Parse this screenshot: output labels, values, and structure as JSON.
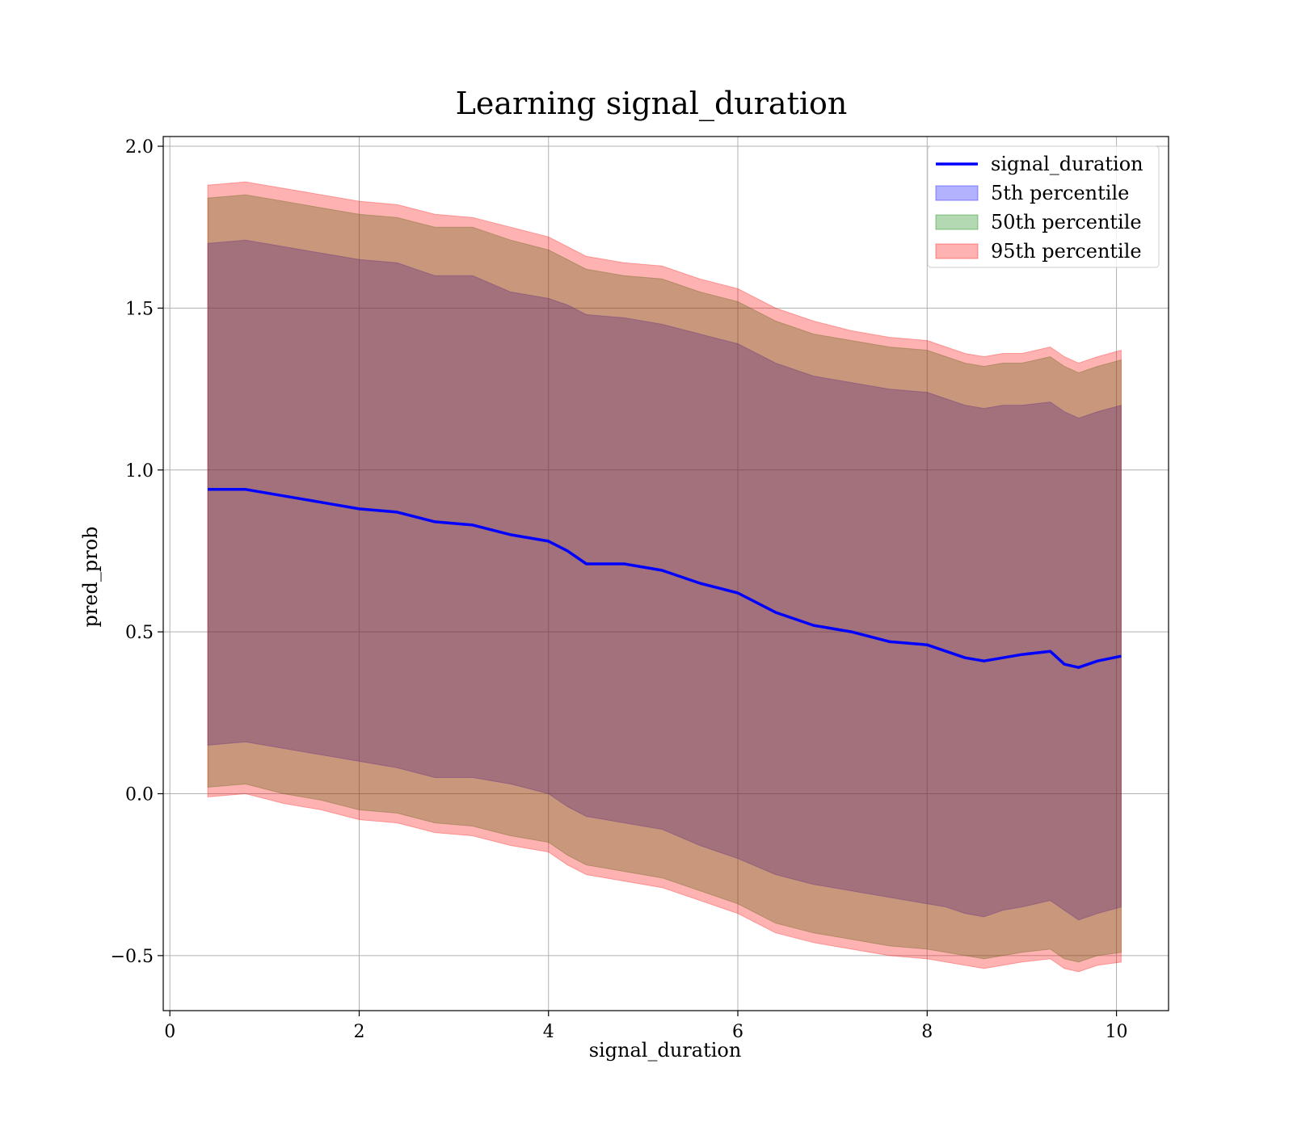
{
  "chart_data": {
    "type": "line",
    "title": "Learning signal_duration",
    "xlabel": "signal_duration",
    "ylabel": "pred_prob",
    "xlim": [
      -0.07,
      10.55
    ],
    "ylim": [
      -0.67,
      2.03
    ],
    "xticks": [
      0,
      2,
      4,
      6,
      8,
      10
    ],
    "xtick_labels": [
      "0",
      "2",
      "4",
      "6",
      "8",
      "10"
    ],
    "yticks": [
      -0.5,
      0.0,
      0.5,
      1.0,
      1.5,
      2.0
    ],
    "ytick_labels": [
      "−0.5",
      "0.0",
      "0.5",
      "1.0",
      "1.5",
      "2.0"
    ],
    "grid": true,
    "legend_position": "top-right",
    "x": [
      0.4,
      0.8,
      1.2,
      1.6,
      2.0,
      2.4,
      2.8,
      3.2,
      3.6,
      4.0,
      4.2,
      4.4,
      4.8,
      5.2,
      5.6,
      6.0,
      6.4,
      6.8,
      7.2,
      7.6,
      8.0,
      8.2,
      8.4,
      8.6,
      8.8,
      9.0,
      9.3,
      9.45,
      9.6,
      9.8,
      10.05
    ],
    "line": {
      "name": "signal_duration",
      "color": "#0000ff",
      "values": [
        0.94,
        0.94,
        0.92,
        0.9,
        0.88,
        0.87,
        0.84,
        0.83,
        0.8,
        0.78,
        0.75,
        0.71,
        0.71,
        0.69,
        0.65,
        0.62,
        0.56,
        0.52,
        0.5,
        0.47,
        0.46,
        0.44,
        0.42,
        0.41,
        0.42,
        0.43,
        0.44,
        0.4,
        0.39,
        0.41,
        0.425
      ]
    },
    "bands": [
      {
        "name": "5th percentile",
        "color": "#0000ff",
        "opacity": 0.3,
        "lower": [
          0.15,
          0.16,
          0.14,
          0.12,
          0.1,
          0.08,
          0.05,
          0.05,
          0.03,
          0.0,
          -0.04,
          -0.07,
          -0.09,
          -0.11,
          -0.16,
          -0.2,
          -0.25,
          -0.28,
          -0.3,
          -0.32,
          -0.34,
          -0.35,
          -0.37,
          -0.38,
          -0.36,
          -0.35,
          -0.33,
          -0.36,
          -0.39,
          -0.37,
          -0.35
        ],
        "upper": [
          1.7,
          1.71,
          1.69,
          1.67,
          1.65,
          1.64,
          1.6,
          1.6,
          1.55,
          1.53,
          1.51,
          1.48,
          1.47,
          1.45,
          1.42,
          1.39,
          1.33,
          1.29,
          1.27,
          1.25,
          1.24,
          1.22,
          1.2,
          1.19,
          1.2,
          1.2,
          1.21,
          1.18,
          1.16,
          1.18,
          1.2
        ]
      },
      {
        "name": "50th percentile",
        "color": "#008000",
        "opacity": 0.3,
        "lower": [
          0.02,
          0.03,
          0.0,
          -0.02,
          -0.05,
          -0.06,
          -0.09,
          -0.1,
          -0.13,
          -0.15,
          -0.19,
          -0.22,
          -0.24,
          -0.26,
          -0.3,
          -0.34,
          -0.4,
          -0.43,
          -0.45,
          -0.47,
          -0.48,
          -0.49,
          -0.5,
          -0.51,
          -0.5,
          -0.49,
          -0.48,
          -0.51,
          -0.52,
          -0.5,
          -0.49
        ],
        "upper": [
          1.84,
          1.85,
          1.83,
          1.81,
          1.79,
          1.78,
          1.75,
          1.75,
          1.71,
          1.68,
          1.65,
          1.62,
          1.6,
          1.59,
          1.55,
          1.52,
          1.46,
          1.42,
          1.4,
          1.38,
          1.37,
          1.35,
          1.33,
          1.32,
          1.33,
          1.33,
          1.35,
          1.32,
          1.3,
          1.32,
          1.34
        ]
      },
      {
        "name": "95th percentile",
        "color": "#ff0000",
        "opacity": 0.3,
        "lower": [
          -0.01,
          0.0,
          -0.03,
          -0.05,
          -0.08,
          -0.09,
          -0.12,
          -0.13,
          -0.16,
          -0.18,
          -0.22,
          -0.25,
          -0.27,
          -0.29,
          -0.33,
          -0.37,
          -0.43,
          -0.46,
          -0.48,
          -0.5,
          -0.51,
          -0.52,
          -0.53,
          -0.54,
          -0.53,
          -0.52,
          -0.51,
          -0.54,
          -0.55,
          -0.53,
          -0.52
        ],
        "upper": [
          1.88,
          1.89,
          1.87,
          1.85,
          1.83,
          1.82,
          1.79,
          1.78,
          1.75,
          1.72,
          1.69,
          1.66,
          1.64,
          1.63,
          1.59,
          1.56,
          1.5,
          1.46,
          1.43,
          1.41,
          1.4,
          1.38,
          1.36,
          1.35,
          1.36,
          1.36,
          1.38,
          1.35,
          1.33,
          1.35,
          1.37
        ]
      }
    ],
    "legend": [
      "signal_duration",
      "5th percentile",
      "50th percentile",
      "95th percentile"
    ]
  }
}
